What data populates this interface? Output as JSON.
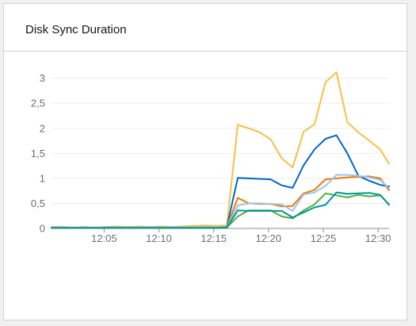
{
  "card": {
    "title": "Disk Sync Duration"
  },
  "chart_data": {
    "type": "line",
    "ylim": [
      0,
      3.2
    ],
    "yticks": [
      {
        "value": 0,
        "label": "0"
      },
      {
        "value": 0.5,
        "label": "0,5"
      },
      {
        "value": 1,
        "label": "1"
      },
      {
        "value": 1.5,
        "label": "1,5"
      },
      {
        "value": 2,
        "label": "2"
      },
      {
        "value": 2.5,
        "label": "2,5"
      },
      {
        "value": 3,
        "label": "3"
      }
    ],
    "xlim": [
      0,
      30.8
    ],
    "xticks": [
      {
        "value": 4.8,
        "label": "12:05"
      },
      {
        "value": 9.8,
        "label": "12:10"
      },
      {
        "value": 14.8,
        "label": "12:15"
      },
      {
        "value": 19.8,
        "label": "12:20"
      },
      {
        "value": 24.8,
        "label": "12:25"
      },
      {
        "value": 29.8,
        "label": "12:30"
      }
    ],
    "x": [
      0,
      1,
      2,
      3,
      4,
      5,
      6,
      7,
      8,
      9,
      10,
      11,
      12,
      13,
      14,
      15,
      16,
      17,
      18,
      19,
      20,
      21,
      22,
      23,
      24,
      25,
      26,
      27,
      28,
      29,
      30,
      30.8
    ],
    "series": [
      {
        "color": "#f4c145",
        "values": [
          0.03,
          0.03,
          0.02,
          0.03,
          0.02,
          0.03,
          0.04,
          0.03,
          0.04,
          0.03,
          0.04,
          0.03,
          0.04,
          0.05,
          0.06,
          0.05,
          0.06,
          2.07,
          2.0,
          1.92,
          1.78,
          1.4,
          1.22,
          1.93,
          2.08,
          2.92,
          3.12,
          2.12,
          1.92,
          1.75,
          1.58,
          1.29
        ]
      },
      {
        "color": "#06c",
        "values": [
          0.02,
          0.02,
          0.01,
          0.02,
          0.01,
          0.02,
          0.02,
          0.02,
          0.02,
          0.02,
          0.02,
          0.02,
          0.02,
          0.02,
          0.03,
          0.02,
          0.03,
          1.01,
          1.0,
          0.99,
          0.98,
          0.86,
          0.81,
          1.26,
          1.58,
          1.79,
          1.86,
          1.5,
          1.05,
          0.95,
          0.87,
          0.84
        ]
      },
      {
        "color": "#ec7a08",
        "values": [
          0.02,
          0.02,
          0.01,
          0.02,
          0.01,
          0.02,
          0.02,
          0.02,
          0.02,
          0.02,
          0.02,
          0.02,
          0.02,
          0.02,
          0.03,
          0.02,
          0.03,
          0.61,
          0.5,
          0.49,
          0.49,
          0.44,
          0.45,
          0.7,
          0.77,
          0.98,
          1.0,
          1.02,
          1.03,
          1.04,
          1.0,
          0.76
        ]
      },
      {
        "color": "#9ec3e6",
        "values": [
          0.02,
          0.02,
          0.01,
          0.02,
          0.01,
          0.02,
          0.02,
          0.02,
          0.02,
          0.02,
          0.02,
          0.02,
          0.02,
          0.02,
          0.03,
          0.02,
          0.03,
          0.46,
          0.5,
          0.5,
          0.49,
          0.48,
          0.35,
          0.68,
          0.72,
          0.85,
          1.07,
          1.07,
          1.05,
          1.02,
          0.97,
          0.8
        ]
      },
      {
        "color": "#4cb140",
        "values": [
          0.01,
          0.01,
          0.01,
          0.01,
          0.01,
          0.01,
          0.01,
          0.01,
          0.01,
          0.01,
          0.01,
          0.01,
          0.01,
          0.01,
          0.01,
          0.01,
          0.02,
          0.24,
          0.36,
          0.36,
          0.36,
          0.24,
          0.2,
          0.36,
          0.48,
          0.7,
          0.66,
          0.62,
          0.67,
          0.64,
          0.66,
          0.48
        ]
      },
      {
        "color": "#009596",
        "values": [
          0.01,
          0.01,
          0.01,
          0.01,
          0.01,
          0.01,
          0.01,
          0.01,
          0.01,
          0.01,
          0.01,
          0.01,
          0.01,
          0.01,
          0.01,
          0.01,
          0.02,
          0.36,
          0.35,
          0.35,
          0.35,
          0.35,
          0.22,
          0.32,
          0.42,
          0.47,
          0.72,
          0.69,
          0.7,
          0.71,
          0.67,
          0.47
        ]
      }
    ]
  }
}
